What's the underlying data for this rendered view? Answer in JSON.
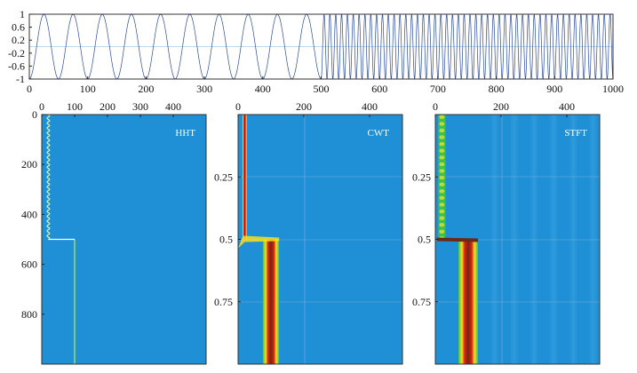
{
  "chart_data": [
    {
      "type": "line",
      "name": "signal",
      "title": "",
      "xlabel": "",
      "ylabel": "",
      "xlim": [
        0,
        1000
      ],
      "ylim": [
        -1,
        1
      ],
      "x_ticks": [
        "0",
        "100",
        "200",
        "300",
        "400",
        "500",
        "600",
        "700",
        "800",
        "900",
        "1000"
      ],
      "y_ticks": [
        "1",
        "0.6",
        "0.2",
        "-0.2",
        "-0.6",
        "-1"
      ],
      "segments": [
        {
          "x_start": 0,
          "x_end": 500,
          "cycles": 10,
          "amplitude": 1
        },
        {
          "x_start": 500,
          "x_end": 1000,
          "cycles": 50,
          "amplitude": 1
        }
      ]
    },
    {
      "type": "heatmap",
      "label": "HHT",
      "x_ticks": [
        "0",
        "100",
        "200",
        "300",
        "400"
      ],
      "y_ticks": [
        "0",
        "200",
        "400",
        "600",
        "800"
      ],
      "xlim": [
        0,
        500
      ],
      "ylim": [
        0,
        1000
      ],
      "ridges": [
        {
          "freq": 20,
          "t_start": 0,
          "t_end": 500,
          "color": "#d8f0a0"
        },
        {
          "freq": 100,
          "t_start": 500,
          "t_end": 1000,
          "color": "#a8e060"
        }
      ]
    },
    {
      "type": "heatmap",
      "label": "CWT",
      "x_ticks": [
        "0",
        "200",
        "400"
      ],
      "y_ticks": [
        "0.25",
        "0.5",
        "0.75"
      ],
      "xlim": [
        0,
        500
      ],
      "ylim": [
        0,
        1
      ],
      "ridges": [
        {
          "freq": 20,
          "width": 14,
          "t_start": 0,
          "t_end": 0.5
        },
        {
          "freq": 100,
          "width": 50,
          "t_start": 0.5,
          "t_end": 1
        }
      ]
    },
    {
      "type": "heatmap",
      "label": "STFT",
      "x_ticks": [
        "0",
        "200",
        "400"
      ],
      "y_ticks": [
        "0.25",
        "0.5",
        "0.75"
      ],
      "xlim": [
        0,
        500
      ],
      "ylim": [
        0,
        1
      ],
      "ridges": [
        {
          "freq": 20,
          "width": 22,
          "t_start": 0,
          "t_end": 0.5
        },
        {
          "freq": 100,
          "width": 60,
          "t_start": 0.5,
          "t_end": 1
        }
      ]
    }
  ],
  "colors": {
    "background": "#1f8fd6",
    "line": "#2a4a9a",
    "ridge_core": "#6b2a14",
    "ridge_mid": "#e02010",
    "ridge_outer": "#f8e020",
    "ridge_edge": "#30c060"
  }
}
